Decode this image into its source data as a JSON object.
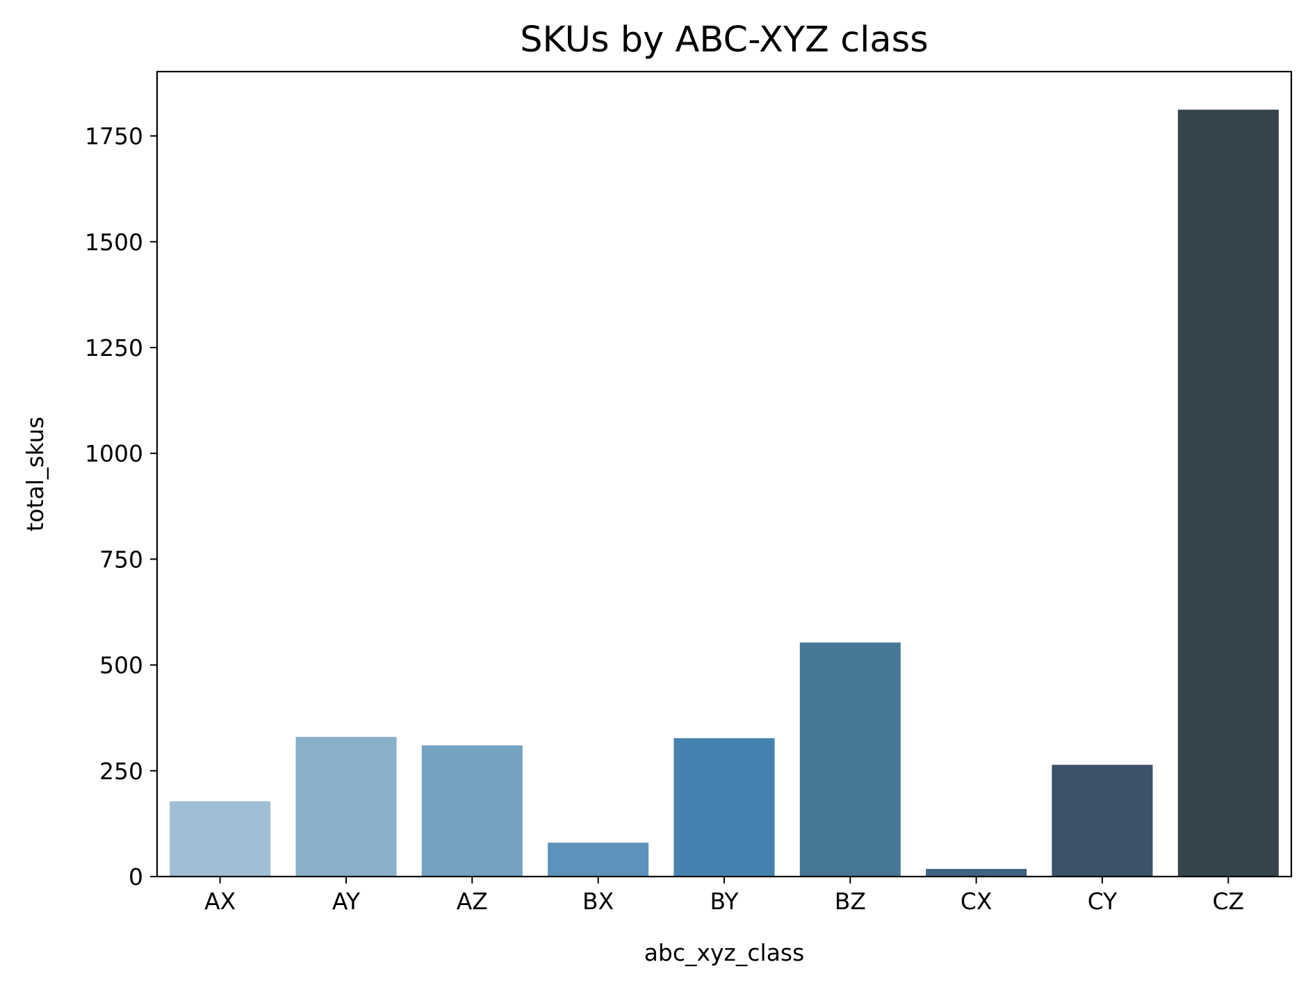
{
  "chart_data": {
    "type": "bar",
    "title": "SKUs by ABC-XYZ class",
    "xlabel": "abc_xyz_class",
    "ylabel": "total_skus",
    "categories": [
      "AX",
      "AY",
      "AZ",
      "BX",
      "BY",
      "BZ",
      "CX",
      "CY",
      "CZ"
    ],
    "values": [
      178,
      330,
      310,
      80,
      327,
      553,
      18,
      264,
      1812
    ],
    "colors": [
      "#a0bfd6",
      "#89b0cb",
      "#73a2c2",
      "#5d93ba",
      "#4682b0",
      "#467796",
      "#3f6383",
      "#3b5268",
      "#36444d"
    ],
    "yticks": [
      0,
      250,
      500,
      750,
      1000,
      1250,
      1500,
      1750
    ],
    "ylim": [
      0,
      1902
    ],
    "grid": false,
    "legend": false
  }
}
